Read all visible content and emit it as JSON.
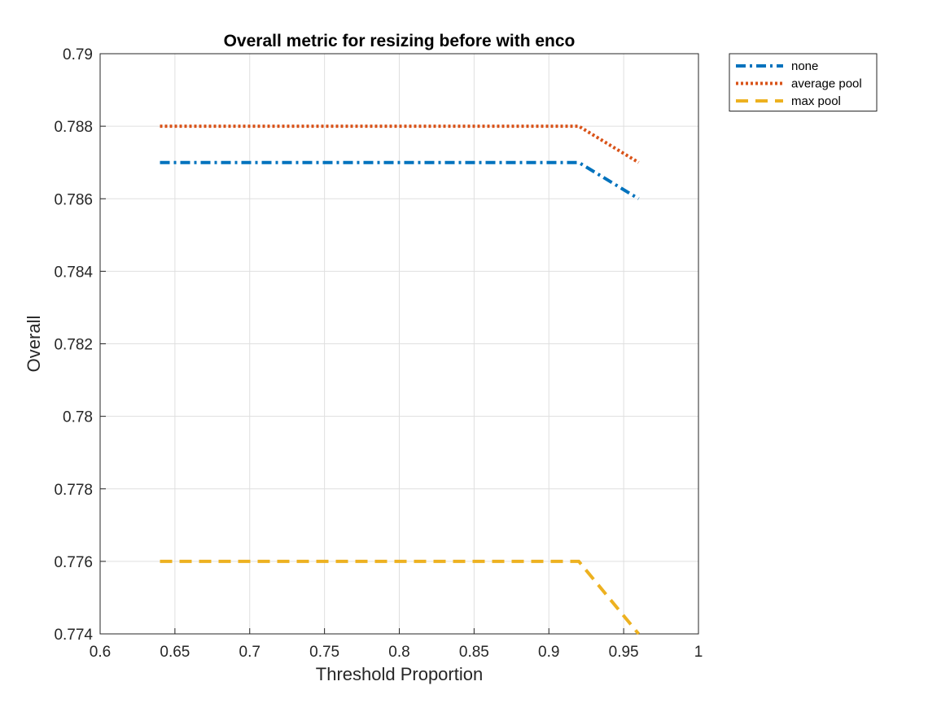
{
  "chart_data": {
    "type": "line",
    "title": "Overall metric for resizing before with enco",
    "xlabel": "Threshold Proportion",
    "ylabel": "Overall",
    "xlim": [
      0.6,
      1.0
    ],
    "ylim": [
      0.774,
      0.79
    ],
    "xticks": [
      0.6,
      0.65,
      0.7,
      0.75,
      0.8,
      0.85,
      0.9,
      0.95,
      1.0
    ],
    "xtick_labels": [
      "0.6",
      "0.65",
      "0.7",
      "0.75",
      "0.8",
      "0.85",
      "0.9",
      "0.95",
      "1"
    ],
    "yticks": [
      0.774,
      0.776,
      0.778,
      0.78,
      0.782,
      0.784,
      0.786,
      0.788,
      0.79
    ],
    "ytick_labels": [
      "0.774",
      "0.776",
      "0.778",
      "0.78",
      "0.782",
      "0.784",
      "0.786",
      "0.788",
      "0.79"
    ],
    "grid": true,
    "legend_position": "outside-top-right",
    "x": [
      0.64,
      0.92,
      0.96
    ],
    "series": [
      {
        "name": "none",
        "values": [
          0.787,
          0.787,
          0.786
        ],
        "color": "#0072BD",
        "style": "dash-dot"
      },
      {
        "name": "average pool",
        "values": [
          0.788,
          0.788,
          0.787
        ],
        "color": "#D95319",
        "style": "dotted"
      },
      {
        "name": "max pool",
        "values": [
          0.776,
          0.776,
          0.774
        ],
        "color": "#EDB120",
        "style": "dashed"
      }
    ]
  }
}
